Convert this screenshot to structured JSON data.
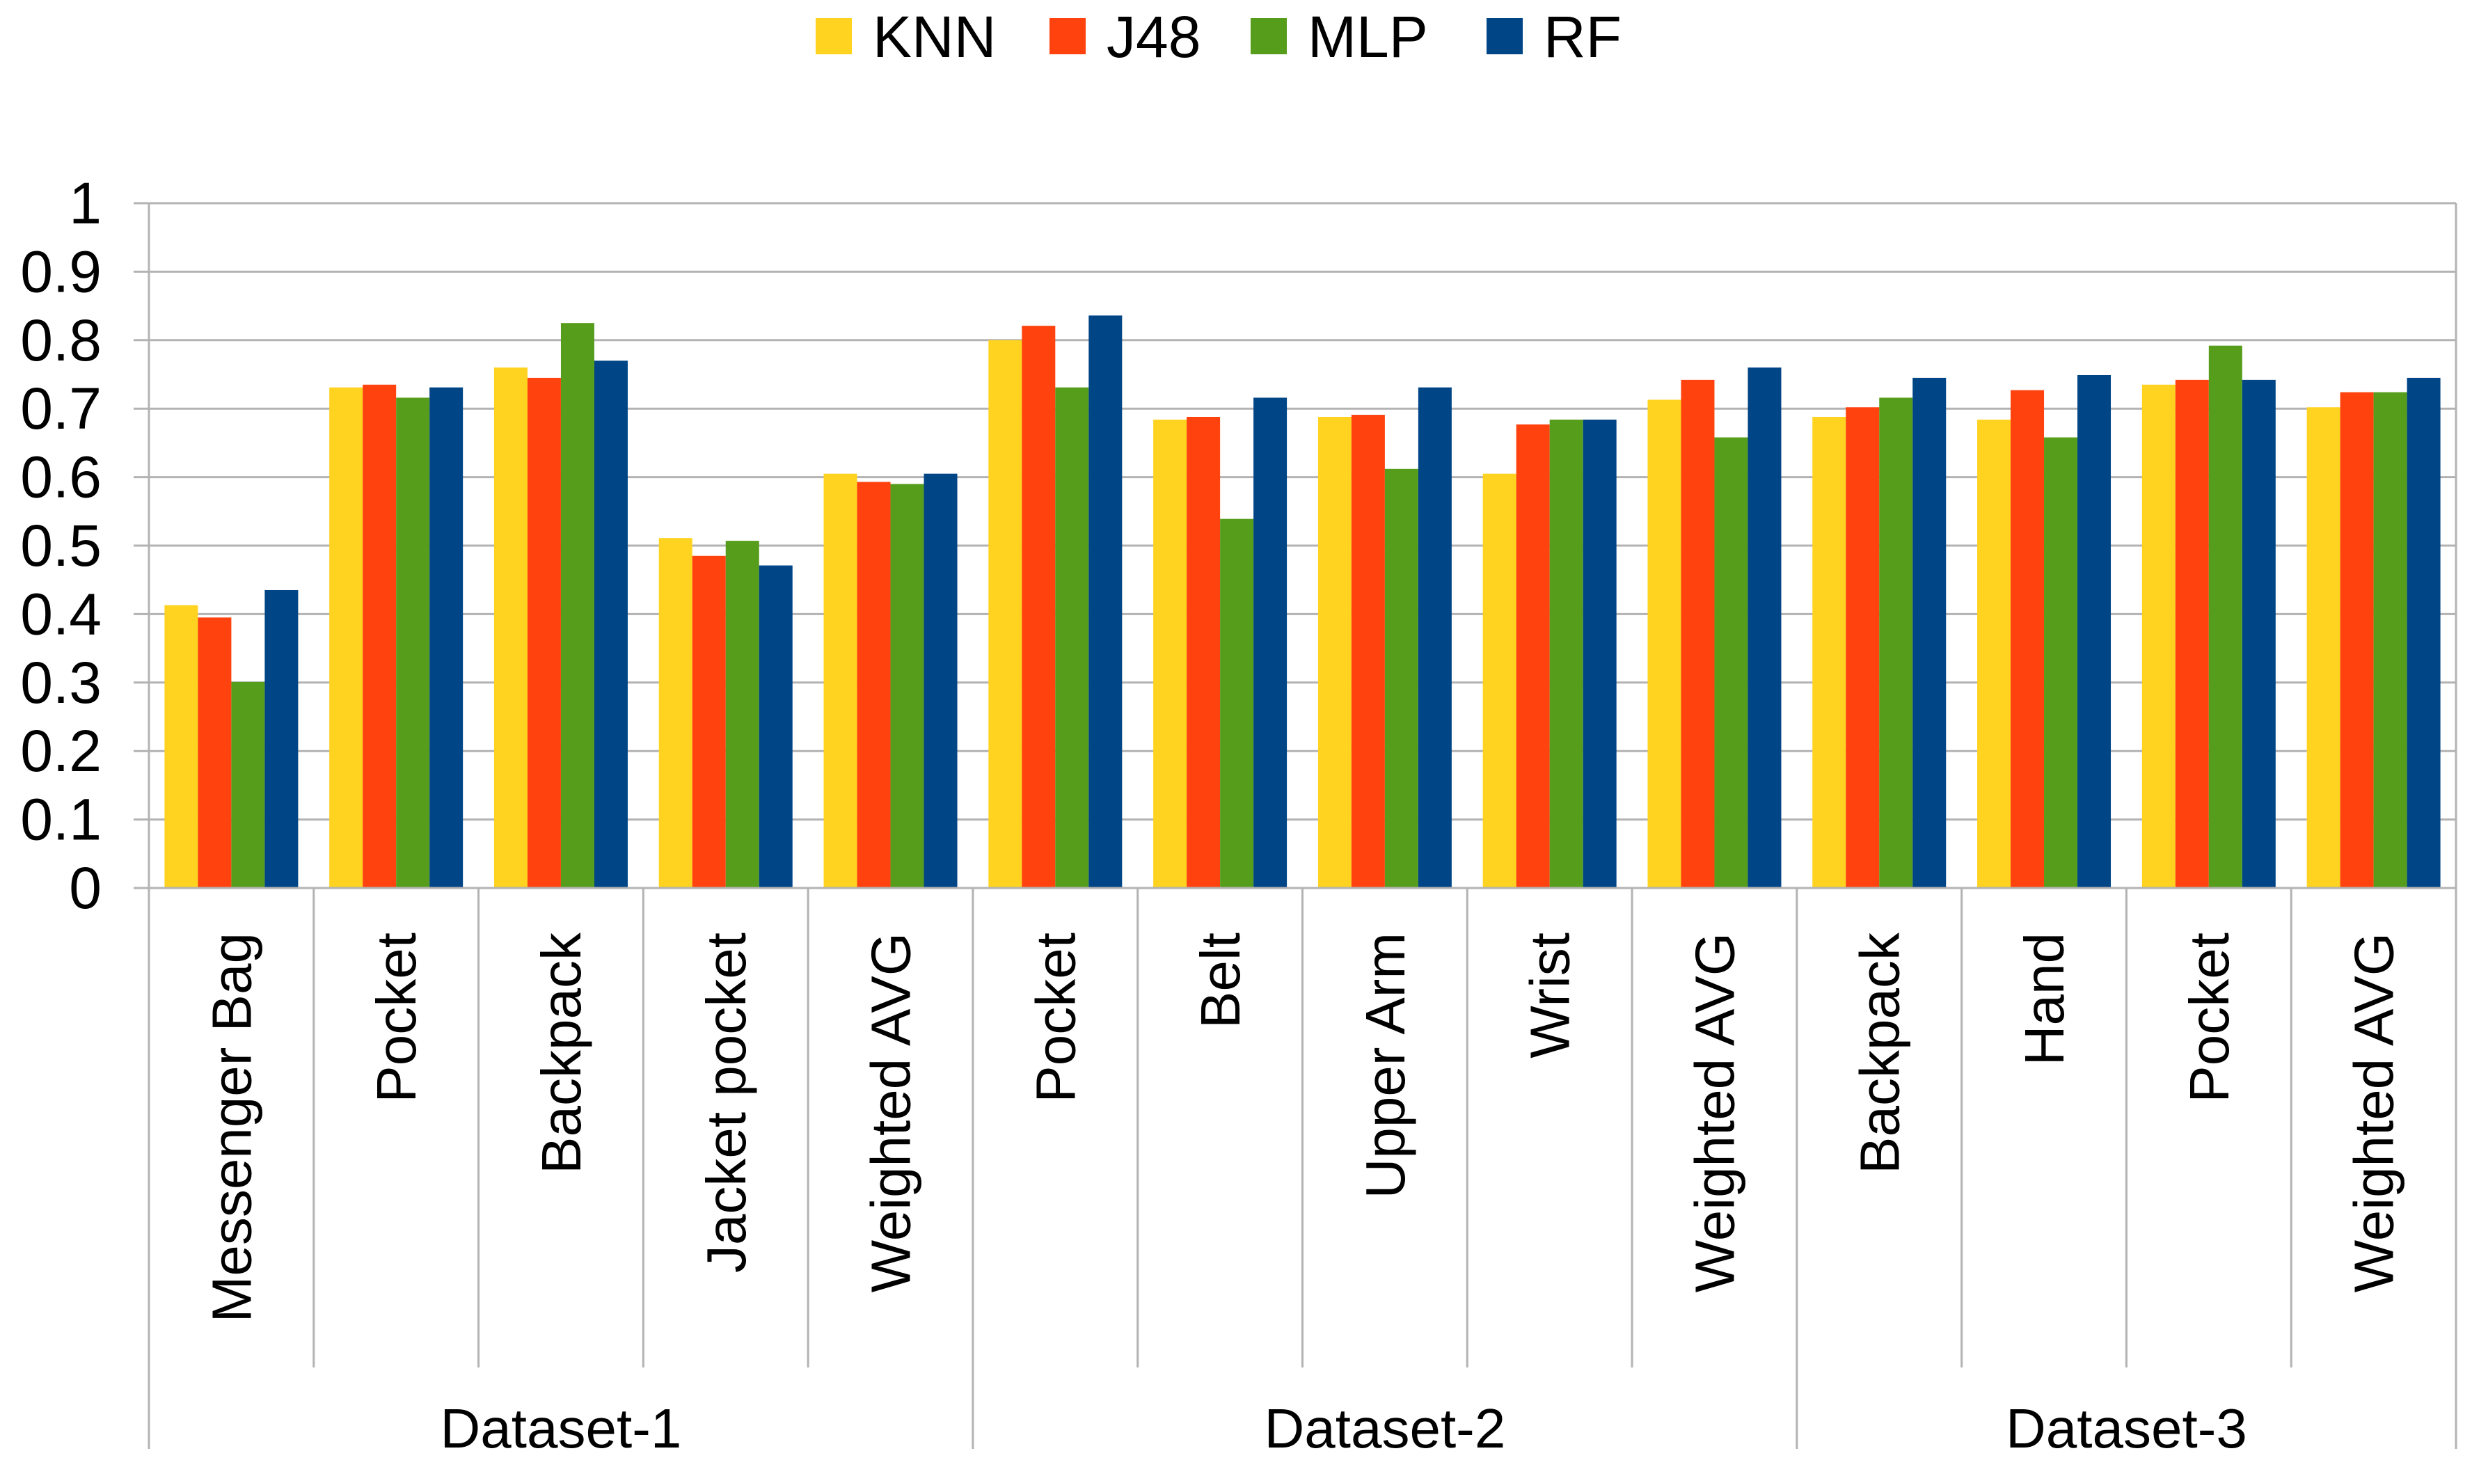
{
  "chart_data": {
    "type": "bar",
    "title": "",
    "xlabel": "",
    "ylabel": "",
    "ylim": [
      0,
      1
    ],
    "yticks": [
      "0",
      "0.1",
      "0.2",
      "0.3",
      "0.4",
      "0.5",
      "0.6",
      "0.7",
      "0.8",
      "0.9",
      "1"
    ],
    "grid": true,
    "legend_position": "top",
    "groups": [
      {
        "name": "Dataset-1",
        "categories": [
          "Messenger Bag",
          "Pocket",
          "Backpack",
          "Jacket pocket",
          "Weighted AVG"
        ]
      },
      {
        "name": "Dataset-2",
        "categories": [
          "Pocket",
          "Belt",
          "Upper Arm",
          "Wrist",
          "Weighted AVG"
        ]
      },
      {
        "name": "Dataset-3",
        "categories": [
          "Backpack",
          "Hand",
          "Pocket",
          "Weighted AVG"
        ]
      }
    ],
    "series": [
      {
        "name": "KNN",
        "color": "#ffd320",
        "values": [
          0.413,
          0.731,
          0.76,
          0.511,
          0.605,
          0.8,
          0.684,
          0.688,
          0.605,
          0.713,
          0.688,
          0.684,
          0.735,
          0.702
        ]
      },
      {
        "name": "J48",
        "color": "#ff420e",
        "values": [
          0.395,
          0.735,
          0.745,
          0.485,
          0.593,
          0.821,
          0.688,
          0.691,
          0.677,
          0.742,
          0.702,
          0.727,
          0.742,
          0.724
        ]
      },
      {
        "name": "MLP",
        "color": "#579d1c",
        "values": [
          0.301,
          0.716,
          0.825,
          0.507,
          0.59,
          0.731,
          0.539,
          0.612,
          0.684,
          0.658,
          0.716,
          0.658,
          0.792,
          0.724
        ]
      },
      {
        "name": "RF",
        "color": "#004586",
        "values": [
          0.435,
          0.731,
          0.77,
          0.471,
          0.605,
          0.836,
          0.716,
          0.731,
          0.684,
          0.76,
          0.745,
          0.749,
          0.742,
          0.745
        ]
      }
    ]
  }
}
